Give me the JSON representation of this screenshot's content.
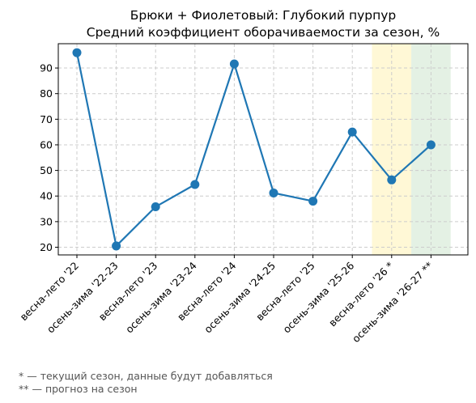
{
  "chart_data": {
    "type": "line",
    "title": "Брюки + Фиолетовый: Глубокий пурпур",
    "subtitle": "Средний коэффициент оборачиваемости за сезон, %",
    "xlabel": "",
    "ylabel": "",
    "categories": [
      "весна-лето '22",
      "осень-зима '22-23",
      "весна-лето '23",
      "осень-зима '23-24",
      "весна-лето '24",
      "осень-зима '24-25",
      "весна-лето '25",
      "осень-зима '25-26",
      "весна-лето '26 *",
      "осень-зима '26-27 **"
    ],
    "series": [
      {
        "values": [
          96.0,
          20.5,
          35.8,
          44.5,
          91.6,
          41.2,
          38.0,
          65.0,
          46.3,
          60.0
        ],
        "color": "#1f77b4"
      }
    ],
    "ylim": [
      17.0,
      99.5
    ],
    "yticks": [
      20,
      30,
      40,
      50,
      60,
      70,
      80,
      90
    ],
    "grid": true,
    "highlight_bands": [
      {
        "category": "весна-лето '26 *",
        "meaning": "current",
        "color": "#fff8d6"
      },
      {
        "category": "осень-зима '26-27 **",
        "meaning": "forecast",
        "color": "#e4f1e4"
      }
    ]
  },
  "footnotes": [
    "* — текущий сезон, данные будут добавляться",
    "** — прогноз на сезон"
  ]
}
